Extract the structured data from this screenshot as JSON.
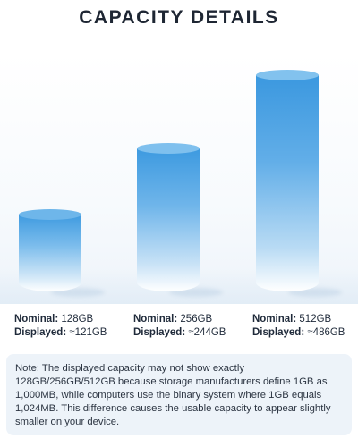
{
  "title": "CAPACITY DETAILS",
  "specs": [
    {
      "nominal_label": "Nominal:",
      "nominal_value": " 128GB",
      "displayed_label": "Displayed:",
      "displayed_value": " ≈121GB"
    },
    {
      "nominal_label": "Nominal:",
      "nominal_value": " 256GB",
      "displayed_label": "Displayed:",
      "displayed_value": " ≈244GB"
    },
    {
      "nominal_label": "Nominal:",
      "nominal_value": " 512GB",
      "displayed_label": "Displayed:",
      "displayed_value": " ≈486GB"
    }
  ],
  "note": "Note: The displayed capacity may not show exactly 128GB/256GB/512GB because storage manufacturers define 1GB as 1,000MB, while computers use the binary system where 1GB equals 1,024MB. This difference causes the usable capacity to appear slightly smaller on your device.",
  "colors": {
    "cylinder_blue": "#3f9be0",
    "note_background": "#edf3f9",
    "title": "#1e2633"
  }
}
